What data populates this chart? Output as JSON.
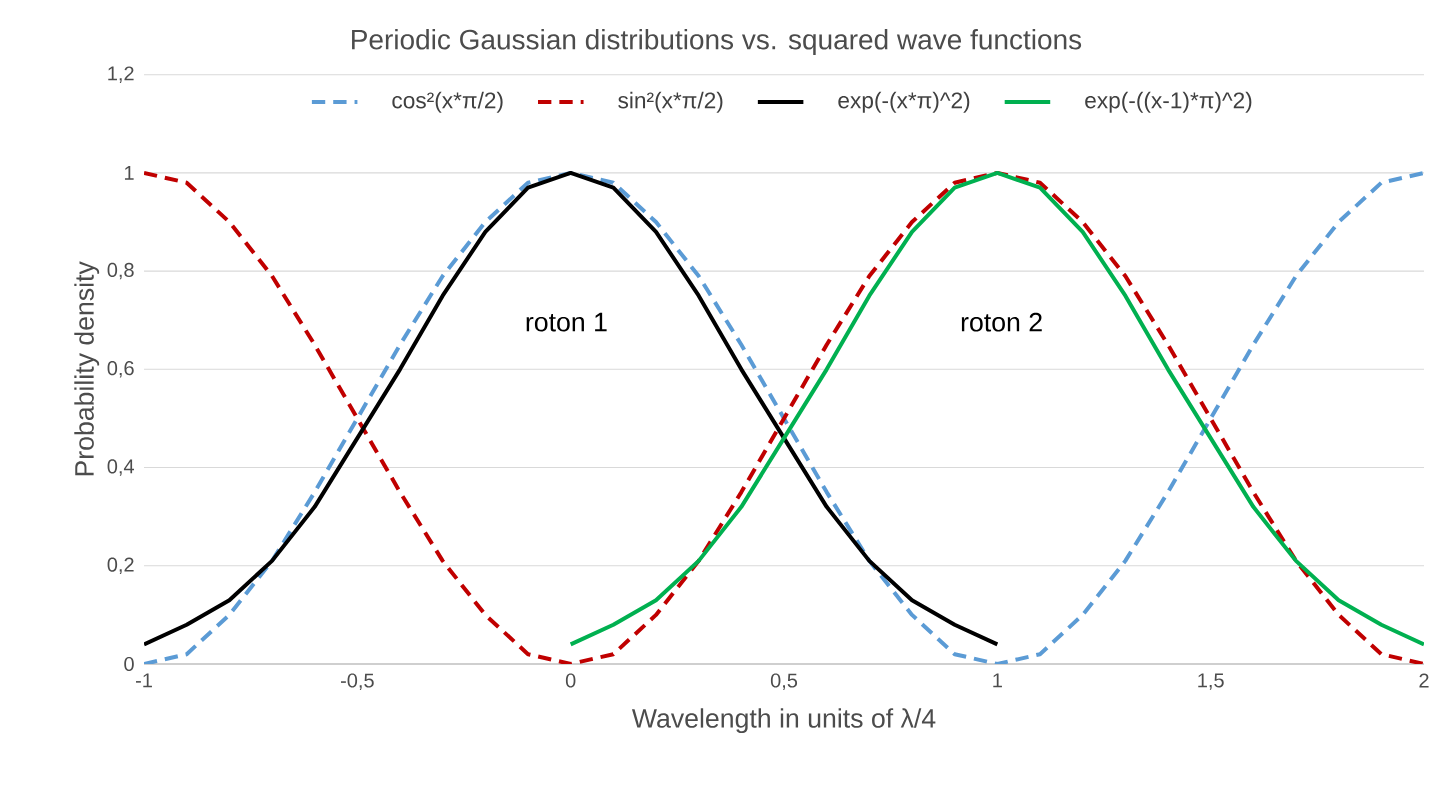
{
  "chart_data": {
    "type": "line",
    "title": "Periodic Gaussian distributions vs. squared wave functions",
    "xlabel": "Wavelength in units of λ/4",
    "ylabel": "Probability density",
    "xlim": [
      -1,
      2
    ],
    "xticks": [
      {
        "value": -1,
        "label": "-1"
      },
      {
        "value": -0.5,
        "label": "-0,5"
      },
      {
        "value": 0,
        "label": "0"
      },
      {
        "value": 0.5,
        "label": "0,5"
      },
      {
        "value": 1,
        "label": "1"
      },
      {
        "value": 1.5,
        "label": "1,5"
      },
      {
        "value": 2,
        "label": "2"
      }
    ],
    "ylim": [
      0,
      1.2
    ],
    "yticks": [
      {
        "value": 0,
        "label": "0"
      },
      {
        "value": 0.2,
        "label": "0,2"
      },
      {
        "value": 0.4,
        "label": "0,4"
      },
      {
        "value": 0.6,
        "label": "0,6"
      },
      {
        "value": 0.8,
        "label": "0,8"
      },
      {
        "value": 1,
        "label": "1"
      },
      {
        "value": 1.2,
        "label": "1,2"
      }
    ],
    "grid": "y",
    "legend": "top",
    "marker": "none",
    "series": [
      {
        "name": "cos²(x*π/2)",
        "color": "#5b9bd5",
        "line_style": "dashed",
        "x": [
          -1,
          -0.9,
          -0.8,
          -0.7,
          -0.6,
          -0.5,
          -0.4,
          -0.3,
          -0.2,
          -0.1,
          0,
          0.1,
          0.2,
          0.3,
          0.4,
          0.5,
          0.6,
          0.7,
          0.8,
          0.9,
          1,
          1.1,
          1.2,
          1.3,
          1.4,
          1.5,
          1.6,
          1.7,
          1.8,
          1.9,
          2
        ],
        "values": [
          0,
          0.02,
          0.1,
          0.21,
          0.35,
          0.5,
          0.65,
          0.79,
          0.9,
          0.98,
          1,
          0.98,
          0.9,
          0.79,
          0.65,
          0.5,
          0.35,
          0.21,
          0.1,
          0.02,
          0,
          0.02,
          0.1,
          0.21,
          0.35,
          0.5,
          0.65,
          0.79,
          0.9,
          0.98,
          1
        ]
      },
      {
        "name": "sin²(x*π/2)",
        "color": "#c00000",
        "line_style": "dashed",
        "x": [
          -1,
          -0.9,
          -0.8,
          -0.7,
          -0.6,
          -0.5,
          -0.4,
          -0.3,
          -0.2,
          -0.1,
          0,
          0.1,
          0.2,
          0.3,
          0.4,
          0.5,
          0.6,
          0.7,
          0.8,
          0.9,
          1,
          1.1,
          1.2,
          1.3,
          1.4,
          1.5,
          1.6,
          1.7,
          1.8,
          1.9,
          2
        ],
        "values": [
          1,
          0.98,
          0.9,
          0.79,
          0.65,
          0.5,
          0.35,
          0.21,
          0.1,
          0.02,
          0,
          0.02,
          0.1,
          0.21,
          0.35,
          0.5,
          0.65,
          0.79,
          0.9,
          0.98,
          1,
          0.98,
          0.9,
          0.79,
          0.65,
          0.5,
          0.35,
          0.21,
          0.1,
          0.02,
          0
        ]
      },
      {
        "name": "exp(-(x*π)^2)",
        "color": "#000000",
        "line_style": "solid",
        "x": [
          -1,
          -0.9,
          -0.8,
          -0.7,
          -0.6,
          -0.5,
          -0.4,
          -0.3,
          -0.2,
          -0.1,
          0,
          0.1,
          0.2,
          0.3,
          0.4,
          0.5,
          0.6,
          0.7,
          0.8,
          0.9,
          1
        ],
        "values": [
          0.04,
          0.08,
          0.13,
          0.21,
          0.32,
          0.46,
          0.6,
          0.75,
          0.88,
          0.97,
          1,
          0.97,
          0.88,
          0.75,
          0.6,
          0.46,
          0.32,
          0.21,
          0.13,
          0.08,
          0.04
        ]
      },
      {
        "name": "exp(-((x-1)*π)^2)",
        "color": "#00b050",
        "line_style": "solid",
        "x": [
          0,
          0.1,
          0.2,
          0.3,
          0.4,
          0.5,
          0.6,
          0.7,
          0.8,
          0.9,
          1,
          1.1,
          1.2,
          1.3,
          1.4,
          1.5,
          1.6,
          1.7,
          1.8,
          1.9,
          2
        ],
        "values": [
          0.04,
          0.08,
          0.13,
          0.21,
          0.32,
          0.46,
          0.6,
          0.75,
          0.88,
          0.97,
          1,
          0.97,
          0.88,
          0.75,
          0.6,
          0.46,
          0.32,
          0.21,
          0.13,
          0.08,
          0.04
        ]
      }
    ],
    "annotations": [
      "roton 1",
      "roton 2"
    ]
  }
}
